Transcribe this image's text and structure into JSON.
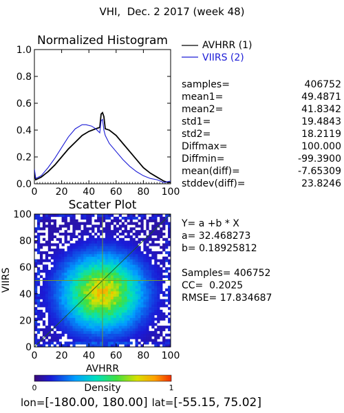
{
  "page_title": "VHI,  Dec. 2 2017 (week 48)",
  "histogram": {
    "title": "Normalized Histogram",
    "legend": [
      {
        "label": "AVHRR (1)",
        "color": "#000000"
      },
      {
        "label": "VIIRS (2)",
        "color": "#1a1ad6"
      }
    ],
    "xticks": [
      "0",
      "20",
      "40",
      "60",
      "80",
      "100"
    ],
    "yticks": [
      "0.0",
      "0.2",
      "0.4",
      "0.6",
      "0.8",
      "1.0"
    ],
    "stats": [
      {
        "label": "samples=",
        "value": "406752"
      },
      {
        "label": "mean1=",
        "value": "49.4871"
      },
      {
        "label": "mean2=",
        "value": "41.8342"
      },
      {
        "label": "std1=",
        "value": "19.4843"
      },
      {
        "label": "std2=",
        "value": "18.2119"
      },
      {
        "label": "Diffmax=",
        "value": "100.000"
      },
      {
        "label": "Diffmin=",
        "value": "-99.3900"
      },
      {
        "label": "mean(diff)=",
        "value": "-7.65309"
      },
      {
        "label": "stddev(diff)=",
        "value": "23.8246"
      }
    ]
  },
  "scatter": {
    "title": "Scatter Plot",
    "xlabel": "AVHRR",
    "ylabel": "VIIRS",
    "xticks": [
      "0",
      "20",
      "40",
      "60",
      "80",
      "100"
    ],
    "yticks": [
      "0",
      "20",
      "40",
      "60",
      "80",
      "100"
    ],
    "fit_lines": [
      "Y= a +b * X",
      "a= 32.468273",
      "b= 0.18925812"
    ],
    "stat_lines": [
      "Samples= 406752",
      "CC=  0.2025",
      "RMSE= 17.834687"
    ]
  },
  "colorbar": {
    "label": "Density",
    "min_label": "0",
    "max_label": "1"
  },
  "footer": {
    "lon_prefix": "lon=",
    "lon_range": "[-180.00, 180.00]",
    "lat_prefix": "lat=",
    "lat_range": "[-55.15, 75.02]"
  },
  "chart_data": [
    {
      "type": "line",
      "title": "Normalized Histogram",
      "xlim": [
        0,
        100
      ],
      "ylim": [
        0,
        1
      ],
      "series": [
        {
          "name": "AVHRR (1)",
          "color": "#000000",
          "x": [
            0,
            1,
            5,
            10,
            15,
            20,
            25,
            30,
            35,
            40,
            45,
            48,
            49,
            50,
            51,
            52,
            55,
            60,
            65,
            70,
            75,
            80,
            85,
            90,
            95,
            98,
            100
          ],
          "y": [
            0.07,
            0.03,
            0.05,
            0.09,
            0.14,
            0.2,
            0.26,
            0.31,
            0.36,
            0.39,
            0.41,
            0.42,
            0.52,
            0.53,
            0.5,
            0.41,
            0.4,
            0.36,
            0.3,
            0.24,
            0.18,
            0.12,
            0.08,
            0.05,
            0.02,
            0.01,
            0.01
          ]
        },
        {
          "name": "VIIRS (2)",
          "color": "#1a1ad6",
          "x": [
            0,
            1,
            5,
            10,
            15,
            20,
            25,
            30,
            35,
            38,
            42,
            45,
            48,
            49,
            50,
            51,
            52,
            55,
            60,
            65,
            70,
            75,
            80,
            85,
            90,
            95,
            100
          ],
          "y": [
            0.11,
            0.04,
            0.06,
            0.12,
            0.19,
            0.27,
            0.35,
            0.41,
            0.44,
            0.44,
            0.43,
            0.41,
            0.38,
            0.47,
            0.48,
            0.4,
            0.36,
            0.3,
            0.24,
            0.18,
            0.13,
            0.09,
            0.06,
            0.04,
            0.03,
            0.01,
            0.02
          ]
        }
      ]
    },
    {
      "type": "scatter",
      "title": "Scatter Plot",
      "xlabel": "AVHRR",
      "ylabel": "VIIRS",
      "xlim": [
        0,
        100
      ],
      "ylim": [
        0,
        100
      ],
      "density_center": [
        50,
        41
      ],
      "density_spread": [
        19.5,
        18.2
      ],
      "colorbar_range": [
        0,
        1
      ],
      "reference_lines": [
        {
          "name": "1:1 line",
          "points": [
            [
              0,
              0
            ],
            [
              100,
              100
            ]
          ]
        },
        {
          "name": "vertical mean",
          "x": 50
        },
        {
          "name": "horizontal mean",
          "y": 50
        }
      ]
    }
  ]
}
